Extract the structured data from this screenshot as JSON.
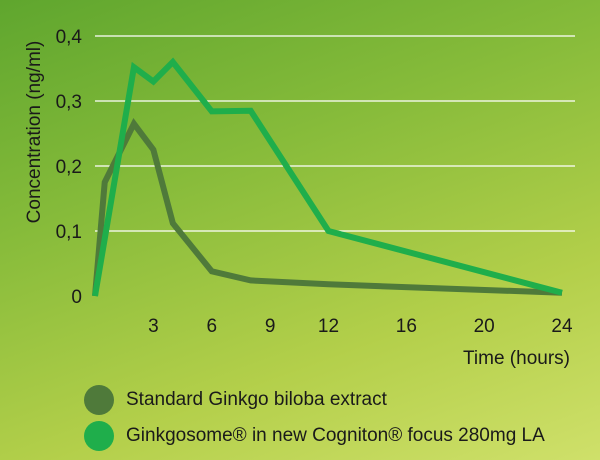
{
  "chart_data": {
    "type": "line",
    "xlabel": "Time (hours)",
    "ylabel": "Concentration (ng/ml)",
    "x_tick_labels": [
      "3",
      "6",
      "9",
      "12",
      "16",
      "20",
      "24"
    ],
    "y_tick_labels": [
      "0",
      "0,1",
      "0,2",
      "0,3",
      "0,4"
    ],
    "x_ticks": [
      3,
      6,
      9,
      12,
      16,
      20,
      24
    ],
    "y_ticks": [
      0,
      0.1,
      0.2,
      0.3,
      0.4
    ],
    "ylim": [
      0,
      0.4
    ],
    "grid": "horizontal",
    "legend": "bottom",
    "series": [
      {
        "name": "Standard Ginkgo biloba extract",
        "color": "#4f7a3a",
        "points": [
          [
            0,
            0
          ],
          [
            0.5,
            0.175
          ],
          [
            2,
            0.265
          ],
          [
            3,
            0.225
          ],
          [
            4,
            0.112
          ],
          [
            6,
            0.038
          ],
          [
            8,
            0.024
          ],
          [
            12,
            0.018
          ],
          [
            24,
            0.005
          ]
        ]
      },
      {
        "name": "Ginkgosome® in new Cogniton® focus 280mg LA",
        "color": "#1fae4b",
        "points": [
          [
            0,
            0
          ],
          [
            2,
            0.352
          ],
          [
            3,
            0.33
          ],
          [
            4,
            0.36
          ],
          [
            6,
            0.284
          ],
          [
            8,
            0.285
          ],
          [
            12,
            0.1
          ],
          [
            24,
            0.005
          ]
        ]
      }
    ]
  }
}
